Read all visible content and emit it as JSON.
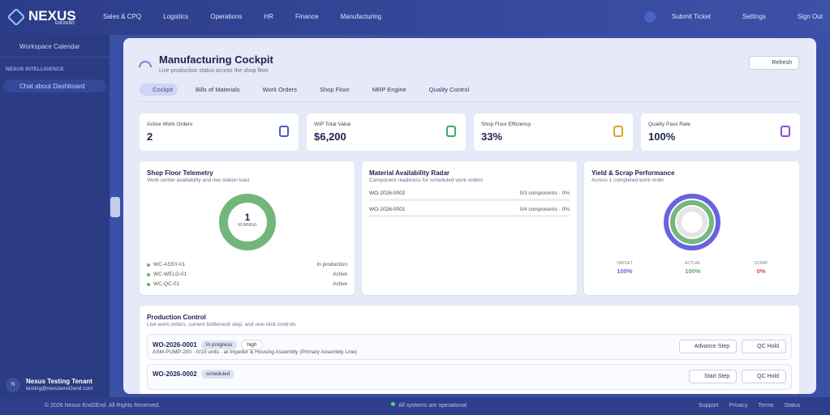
{
  "brand": {
    "name": "NEXUS",
    "sub": "END2END"
  },
  "nav": [
    "Sales & CPQ",
    "Logistics",
    "Operations",
    "HR",
    "Finance",
    "Manufacturing"
  ],
  "top_actions": [
    "Submit Ticket",
    "Settings",
    "Sign Out"
  ],
  "sidebar": {
    "item": "Workspace Calendar",
    "section": "NEXUS INTELLIGENCE",
    "chat": "Chat about Dashboard",
    "user": {
      "initial": "N",
      "name": "Nexus Testing Tenant",
      "email": "testing@nexusend2end.com"
    }
  },
  "header": {
    "title": "Manufacturing Cockpit",
    "subtitle": "Live production status across the shop floor",
    "refresh": "Refresh"
  },
  "tabs": [
    "Cockpit",
    "Bills of Materials",
    "Work Orders",
    "Shop Floor",
    "MRP Engine",
    "Quality Control"
  ],
  "kpis": [
    {
      "label": "Active Work Orders",
      "value": "2"
    },
    {
      "label": "WIP Total Value",
      "value": "$6,200"
    },
    {
      "label": "Shop Floor Efficiency",
      "value": "33%"
    },
    {
      "label": "Quality Pass Rate",
      "value": "100%"
    }
  ],
  "telemetry": {
    "title": "Shop Floor Telemetry",
    "subtitle": "Work center availability and live station load",
    "center_value": "1",
    "center_label": "RUNNING",
    "stations": [
      {
        "name": "WC-ASSY-01",
        "status": "In production"
      },
      {
        "name": "WC-WELD-01",
        "status": "Active"
      },
      {
        "name": "WC-QC-01",
        "status": "Active"
      }
    ]
  },
  "material": {
    "title": "Material Availability Radar",
    "subtitle": "Component readiness for scheduled work orders",
    "rows": [
      {
        "order": "WO-2026-0002",
        "status": "0/3 components · 0%"
      },
      {
        "order": "WO-2026-0001",
        "status": "0/4 components · 0%"
      }
    ]
  },
  "yield": {
    "title": "Yield & Scrap Performance",
    "subtitle": "Across 1 completed work order",
    "metrics": [
      {
        "label": "TARGET",
        "value": "100%"
      },
      {
        "label": "ACTUAL",
        "value": "100%"
      },
      {
        "label": "SCRAP",
        "value": "0%"
      }
    ]
  },
  "production": {
    "title": "Production Control",
    "subtitle": "Live work orders, current bottleneck step, and one-click controls",
    "orders": [
      {
        "id": "WO-2026-0001",
        "status": "In progress",
        "priority": "high",
        "desc": "ASM-PUMP-200 · 0/10 units · at Impeller & Housing Assembly (Primary Assembly Line)",
        "actions": [
          "Advance Step",
          "QC Hold"
        ]
      },
      {
        "id": "WO-2026-0002",
        "status": "scheduled",
        "actions": [
          "Start Step",
          "QC Hold"
        ]
      }
    ]
  },
  "footer": {
    "copyright": "© 2026 Nexus End2End. All Rights Reserved.",
    "status": "All systems are operational",
    "links": [
      "Support",
      "Privacy",
      "Terms",
      "Status"
    ]
  }
}
